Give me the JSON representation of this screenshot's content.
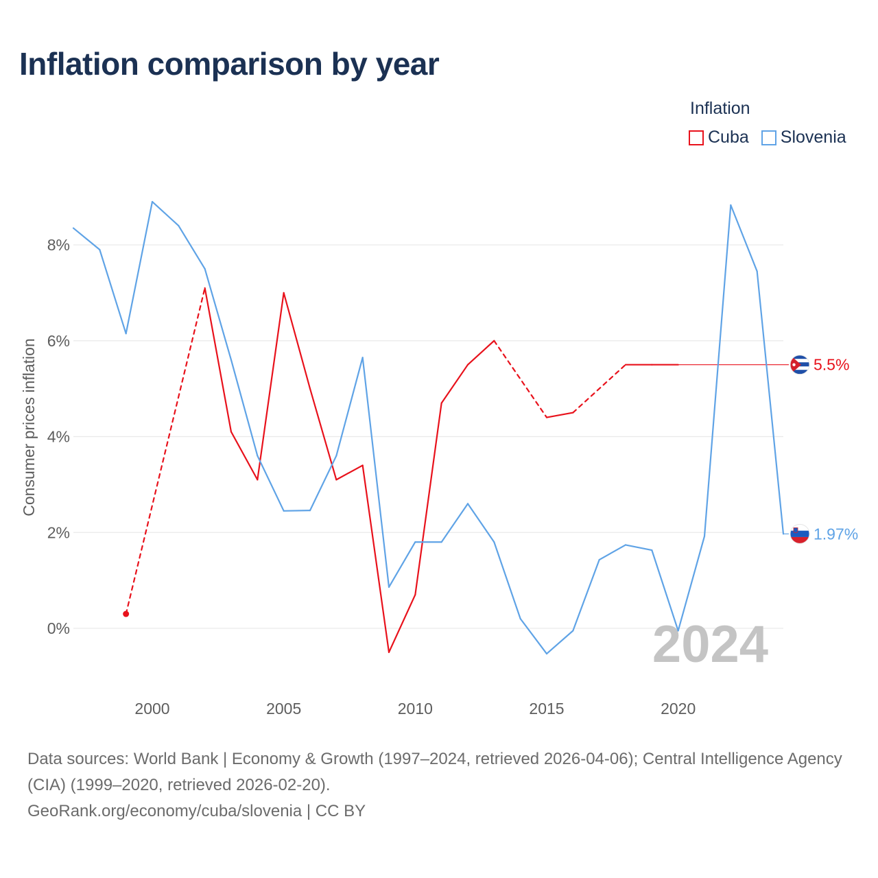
{
  "title": "Inflation comparison by year",
  "legend": {
    "title": "Inflation",
    "items": [
      {
        "name": "Cuba",
        "color": "#e8111b"
      },
      {
        "name": "Slovenia",
        "color": "#5fa3e6"
      }
    ]
  },
  "chart_data": {
    "type": "line",
    "ylabel": "Consumer prices inflation",
    "xlim": [
      1997,
      2024
    ],
    "ylim": [
      -1.6,
      8.9
    ],
    "x_ticks": [
      {
        "value": 2000,
        "label": "2000"
      },
      {
        "value": 2005,
        "label": "2005"
      },
      {
        "value": 2010,
        "label": "2010"
      },
      {
        "value": 2015,
        "label": "2015"
      },
      {
        "value": 2020,
        "label": "2020"
      }
    ],
    "y_ticks": [
      {
        "value": 0,
        "label": "0%"
      },
      {
        "value": 2,
        "label": "2%"
      },
      {
        "value": 4,
        "label": "4%"
      },
      {
        "value": 6,
        "label": "6%"
      },
      {
        "value": 8,
        "label": "8%"
      }
    ],
    "year_watermark": "2024",
    "series": [
      {
        "name": "Cuba",
        "color": "#e8111b",
        "end_label": "5.5%",
        "end_value": 5.5,
        "points": [
          {
            "x": 1999,
            "y": 0.3
          },
          {
            "x": 2002,
            "y": 7.1
          },
          {
            "x": 2003,
            "y": 4.1
          },
          {
            "x": 2004,
            "y": 3.1
          },
          {
            "x": 2005,
            "y": 7.0
          },
          {
            "x": 2006,
            "y": 5.0
          },
          {
            "x": 2007,
            "y": 3.1
          },
          {
            "x": 2008,
            "y": 3.4
          },
          {
            "x": 2009,
            "y": -0.5
          },
          {
            "x": 2010,
            "y": 0.7
          },
          {
            "x": 2011,
            "y": 4.7
          },
          {
            "x": 2012,
            "y": 5.5
          },
          {
            "x": 2013,
            "y": 6.0
          },
          {
            "x": 2015,
            "y": 4.4
          },
          {
            "x": 2016,
            "y": 4.5
          },
          {
            "x": 2018,
            "y": 5.5
          },
          {
            "x": 2019,
            "y": 5.5
          },
          {
            "x": 2020,
            "y": 5.5
          }
        ],
        "dashed_after_x": [
          1999,
          2013,
          2016
        ]
      },
      {
        "name": "Slovenia",
        "color": "#5fa3e6",
        "end_label": "1.97%",
        "end_value": 1.97,
        "points": [
          {
            "x": 1997,
            "y": 8.35
          },
          {
            "x": 1998,
            "y": 7.9
          },
          {
            "x": 1999,
            "y": 6.15
          },
          {
            "x": 2000,
            "y": 8.9
          },
          {
            "x": 2001,
            "y": 8.4
          },
          {
            "x": 2002,
            "y": 7.5
          },
          {
            "x": 2003,
            "y": 5.6
          },
          {
            "x": 2004,
            "y": 3.6
          },
          {
            "x": 2005,
            "y": 2.45
          },
          {
            "x": 2006,
            "y": 2.46
          },
          {
            "x": 2007,
            "y": 3.6
          },
          {
            "x": 2008,
            "y": 5.65
          },
          {
            "x": 2009,
            "y": 0.86
          },
          {
            "x": 2010,
            "y": 1.8
          },
          {
            "x": 2011,
            "y": 1.8
          },
          {
            "x": 2012,
            "y": 2.6
          },
          {
            "x": 2013,
            "y": 1.8
          },
          {
            "x": 2014,
            "y": 0.2
          },
          {
            "x": 2015,
            "y": -0.53
          },
          {
            "x": 2016,
            "y": -0.05
          },
          {
            "x": 2017,
            "y": 1.43
          },
          {
            "x": 2018,
            "y": 1.74
          },
          {
            "x": 2019,
            "y": 1.63
          },
          {
            "x": 2020,
            "y": -0.05
          },
          {
            "x": 2021,
            "y": 1.92
          },
          {
            "x": 2022,
            "y": 8.83
          },
          {
            "x": 2023,
            "y": 7.45
          },
          {
            "x": 2024,
            "y": 1.97
          }
        ],
        "dashed_after_x": []
      }
    ]
  },
  "footer": {
    "sources": "Data sources: World Bank | Economy & Growth (1997–2024, retrieved 2026-04-06); Central Intelligence Agency (CIA) (1999–2020, retrieved 2026-02-20).",
    "credit": "GeoRank.org/economy/cuba/slovenia | CC BY"
  }
}
